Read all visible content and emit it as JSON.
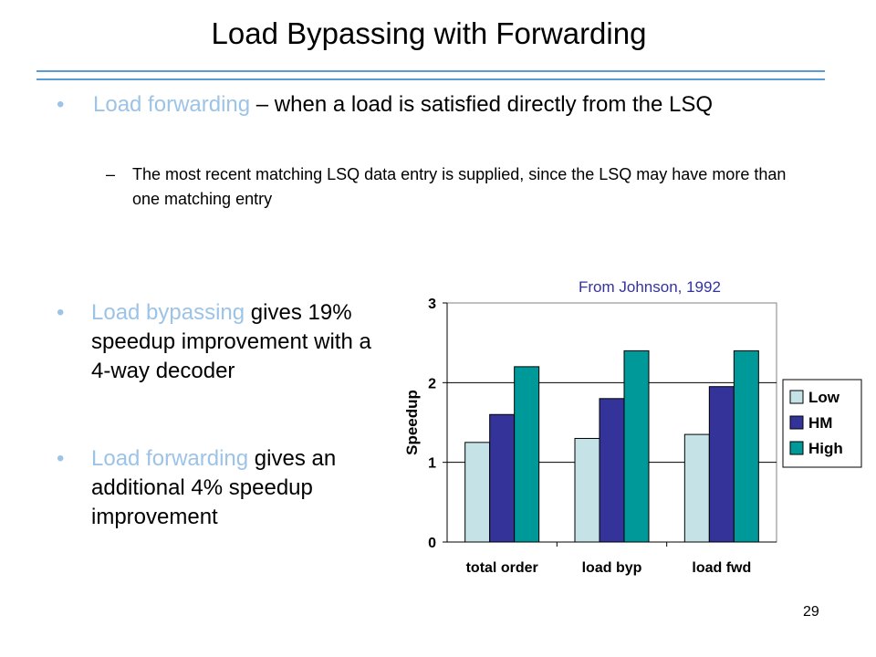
{
  "slide": {
    "title": "Load Bypassing with Forwarding",
    "bullet1": {
      "highlight": "Load forwarding",
      "text": " – when a load is satisfied directly from the LSQ",
      "sub": "The most recent matching LSQ data entry is supplied, since the LSQ may have more than one matching entry",
      "dash": "–"
    },
    "bullet2": {
      "highlight": "Load bypassing",
      "text": " gives 19% speedup improvement with a 4-way decoder"
    },
    "bullet3": {
      "highlight": "Load forwarding",
      "text": " gives an additional 4% speedup improvement"
    },
    "bullet_glyph": "•",
    "source_note": "From Johnson, 1992",
    "page_number": "29"
  },
  "chart_data": {
    "type": "bar",
    "title": "",
    "xlabel": "",
    "ylabel": "Speedup",
    "categories": [
      "total order",
      "load byp",
      "load fwd"
    ],
    "series": [
      {
        "name": "Low",
        "values": [
          1.25,
          1.3,
          1.35
        ],
        "color": "#c5e3e6"
      },
      {
        "name": "HM",
        "values": [
          1.6,
          1.8,
          1.95
        ],
        "color": "#333399"
      },
      {
        "name": "High",
        "values": [
          2.2,
          2.4,
          2.4
        ],
        "color": "#009999"
      }
    ],
    "ylim": [
      0,
      3
    ],
    "yticks": [
      "0",
      "1",
      "2",
      "3"
    ],
    "grid": true,
    "legend_position": "right"
  }
}
